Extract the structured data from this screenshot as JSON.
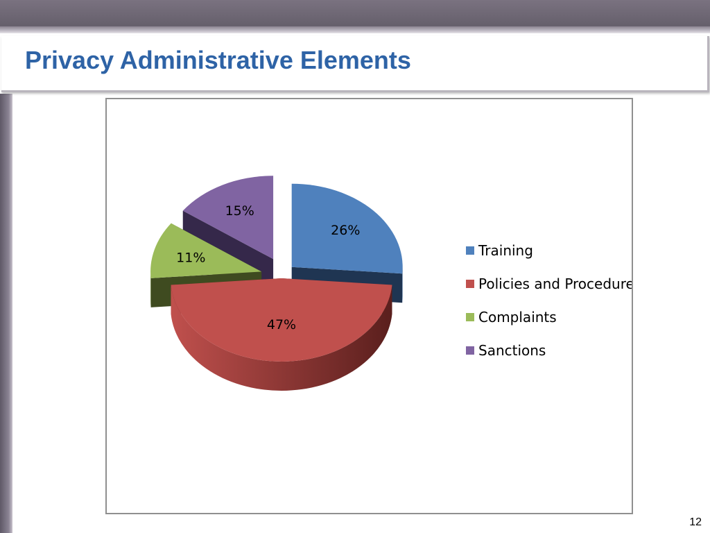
{
  "slide": {
    "title": "Privacy Administrative Elements",
    "page_number": "12"
  },
  "chart_data": {
    "type": "pie",
    "style": "3d-exploded",
    "title": "",
    "categories": [
      "Training",
      "Policies and Procedures",
      "Complaints",
      "Sanctions"
    ],
    "values": [
      26,
      47,
      11,
      15
    ],
    "data_labels": [
      "26%",
      "47%",
      "11%",
      "15%"
    ],
    "colors": [
      "#4f81bd",
      "#c0504d",
      "#9bbb59",
      "#8064a2"
    ],
    "side_colors": [
      "#1f3552",
      "#5a1f1d",
      "#3f4b20",
      "#35284a"
    ],
    "legend_position": "right"
  }
}
